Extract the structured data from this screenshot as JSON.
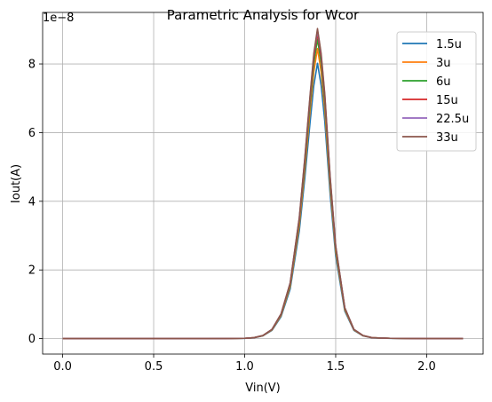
{
  "chart_data": {
    "type": "line",
    "title": "Parametric Analysis for Wcor",
    "xlabel": "Vin(V)",
    "ylabel": "Iout(A)",
    "y_scale_label": "1e−8",
    "xlim": [
      -0.11,
      2.31
    ],
    "ylim": [
      -0.045,
      0.95
    ],
    "y_unit_multiplier": 1e-08,
    "x_ticks": [
      0.0,
      0.5,
      1.0,
      1.5,
      2.0
    ],
    "x_tick_labels": [
      "0.0",
      "0.5",
      "1.0",
      "1.5",
      "2.0"
    ],
    "y_ticks": [
      0,
      2,
      4,
      6,
      8
    ],
    "y_tick_labels": [
      "0",
      "2",
      "4",
      "6",
      "8"
    ],
    "grid": true,
    "legend_position": "top-right",
    "x": [
      0.0,
      0.2,
      0.4,
      0.6,
      0.8,
      1.0,
      1.05,
      1.1,
      1.15,
      1.2,
      1.25,
      1.3,
      1.33,
      1.36,
      1.38,
      1.4,
      1.42,
      1.44,
      1.47,
      1.5,
      1.55,
      1.6,
      1.65,
      1.7,
      1.8,
      2.0,
      2.2
    ],
    "shape": [
      0,
      0,
      0,
      0,
      0,
      0.001,
      0.003,
      0.01,
      0.03,
      0.08,
      0.18,
      0.39,
      0.58,
      0.79,
      0.92,
      1.0,
      0.92,
      0.79,
      0.52,
      0.3,
      0.1,
      0.03,
      0.01,
      0.003,
      0.001,
      0,
      0
    ],
    "series": [
      {
        "name": "1.5u",
        "color": "#1f77b4",
        "peak": 8.02
      },
      {
        "name": "3u",
        "color": "#ff7f0e",
        "peak": 8.45
      },
      {
        "name": "6u",
        "color": "#2ca02c",
        "peak": 8.72
      },
      {
        "name": "15u",
        "color": "#d62728",
        "peak": 8.9
      },
      {
        "name": "22.5u",
        "color": "#9467bd",
        "peak": 8.98
      },
      {
        "name": "33u",
        "color": "#8c564b",
        "peak": 9.03
      }
    ]
  }
}
